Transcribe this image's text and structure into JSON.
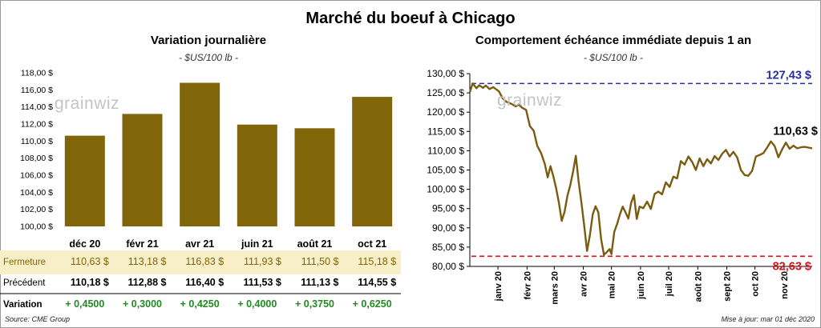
{
  "title": "Marché du boeuf à Chicago",
  "left_title": "Variation journalière",
  "left_unit": "- $US/100 lb -",
  "right_title": "Comportement échéance immédiate depuis 1 an",
  "right_unit": "- $US/100 lb -",
  "watermark": "grainwiz",
  "source": "Source: CME Group",
  "updated": "Mise à jour: mar 01 déc 2020",
  "colors": {
    "bar": "#806608",
    "line": "#7a5c10",
    "high": "#2b2ba0",
    "low": "#d8101a",
    "positive": "#218a21",
    "highlight": "#f8eec8"
  },
  "table": {
    "rows": [
      {
        "label": "Fermeture",
        "values": [
          "110,63 $",
          "113,18 $",
          "116,83 $",
          "111,93 $",
          "111,50 $",
          "115,18 $"
        ]
      },
      {
        "label": "Précédent",
        "values": [
          "110,18 $",
          "112,88 $",
          "116,40 $",
          "111,53 $",
          "111,13 $",
          "114,55 $"
        ]
      },
      {
        "label": "Variation",
        "values": [
          "+ 0,4500",
          "+ 0,3000",
          "+ 0,4250",
          "+ 0,4000",
          "+ 0,3750",
          "+ 0,6250"
        ]
      }
    ]
  },
  "chart_data": [
    {
      "type": "bar",
      "title": "Variation journalière",
      "subtitle": "- $US/100 lb -",
      "categories": [
        "déc 20",
        "févr 21",
        "avr 21",
        "juin 21",
        "août 21",
        "oct 21"
      ],
      "values": [
        110.63,
        113.18,
        116.83,
        111.93,
        111.5,
        115.18
      ],
      "ylim": [
        100,
        118
      ],
      "yticks": [
        100,
        102,
        104,
        106,
        108,
        110,
        112,
        114,
        116,
        118
      ],
      "ytick_labels": [
        "100,00 $",
        "102,00 $",
        "104,00 $",
        "106,00 $",
        "108,00 $",
        "110,00 $",
        "112,00 $",
        "114,00 $",
        "116,00 $",
        "118,00 $"
      ],
      "grid": false
    },
    {
      "type": "line",
      "title": "Comportement échéance immédiate depuis 1 an",
      "subtitle": "- $US/100 lb -",
      "x_type": "date",
      "xtick_labels": [
        "janv 20",
        "févr 20",
        "mars 20",
        "avr 20",
        "mai 20",
        "juin 20",
        "juil 20",
        "août 20",
        "sept 20",
        "oct 20",
        "nov 20"
      ],
      "ylim": [
        80,
        130
      ],
      "yticks": [
        80,
        85,
        90,
        95,
        100,
        105,
        110,
        115,
        120,
        125,
        130
      ],
      "ytick_labels": [
        "80,00 $",
        "85,00 $",
        "90,00 $",
        "95,00 $",
        "100,00 $",
        "105,00 $",
        "110,00 $",
        "115,00 $",
        "120,00 $",
        "125,00 $",
        "130,00 $"
      ],
      "grid": false,
      "series": [
        {
          "x": [
            "2019-12-02",
            "2019-12-05",
            "2019-12-09",
            "2019-12-12",
            "2019-12-16",
            "2019-12-19",
            "2019-12-23",
            "2019-12-27",
            "2020-01-02",
            "2020-01-06",
            "2020-01-10",
            "2020-01-15",
            "2020-01-20",
            "2020-01-23",
            "2020-01-27",
            "2020-01-31",
            "2020-02-04",
            "2020-02-08",
            "2020-02-12",
            "2020-02-16",
            "2020-02-20",
            "2020-02-23",
            "2020-02-26",
            "2020-02-29",
            "2020-03-03",
            "2020-03-06",
            "2020-03-09",
            "2020-03-12",
            "2020-03-15",
            "2020-03-18",
            "2020-03-21",
            "2020-03-24",
            "2020-03-27",
            "2020-03-30",
            "2020-04-02",
            "2020-04-05",
            "2020-04-08",
            "2020-04-11",
            "2020-04-14",
            "2020-04-17",
            "2020-04-20",
            "2020-04-23",
            "2020-04-26",
            "2020-04-29",
            "2020-05-01",
            "2020-05-04",
            "2020-05-07",
            "2020-05-10",
            "2020-05-13",
            "2020-05-16",
            "2020-05-19",
            "2020-05-22",
            "2020-05-25",
            "2020-05-28",
            "2020-05-31",
            "2020-06-04",
            "2020-06-08",
            "2020-06-12",
            "2020-06-16",
            "2020-06-20",
            "2020-06-24",
            "2020-06-28",
            "2020-07-02",
            "2020-07-06",
            "2020-07-10",
            "2020-07-14",
            "2020-07-18",
            "2020-07-22",
            "2020-07-26",
            "2020-07-30",
            "2020-08-03",
            "2020-08-07",
            "2020-08-11",
            "2020-08-15",
            "2020-08-19",
            "2020-08-23",
            "2020-08-27",
            "2020-08-31",
            "2020-09-04",
            "2020-09-08",
            "2020-09-12",
            "2020-09-16",
            "2020-09-20",
            "2020-09-24",
            "2020-09-28",
            "2020-10-02",
            "2020-10-06",
            "2020-10-10",
            "2020-10-14",
            "2020-10-18",
            "2020-10-22",
            "2020-10-26",
            "2020-10-30",
            "2020-11-03",
            "2020-11-07",
            "2020-11-11",
            "2020-11-15",
            "2020-11-19",
            "2020-11-23",
            "2020-11-27",
            "2020-12-01"
          ],
          "y": [
            125.2,
            127.43,
            126.2,
            127.0,
            126.3,
            126.9,
            126.0,
            126.5,
            125.4,
            123.6,
            122.7,
            122.2,
            121.5,
            122.0,
            121.1,
            120.6,
            116.4,
            115.2,
            111.2,
            109.4,
            106.5,
            103.1,
            106.0,
            103.4,
            100.3,
            96.5,
            91.8,
            94.2,
            98.3,
            101.0,
            104.5,
            108.7,
            102.0,
            96.5,
            90.5,
            84.0,
            88.0,
            93.5,
            95.6,
            94.0,
            87.0,
            83.0,
            83.7,
            84.5,
            83.2,
            89.0,
            91.0,
            93.5,
            95.5,
            94.0,
            92.4,
            96.5,
            98.5,
            92.3,
            95.5,
            95.1,
            96.8,
            94.9,
            98.8,
            99.4,
            98.7,
            101.8,
            100.6,
            103.3,
            102.8,
            107.3,
            106.4,
            108.5,
            107.1,
            105.0,
            108.0,
            106.0,
            107.8,
            106.7,
            108.6,
            107.6,
            109.2,
            110.2,
            108.5,
            109.7,
            108.3,
            105.0,
            103.7,
            103.5,
            104.8,
            108.5,
            108.9,
            109.4,
            110.8,
            112.4,
            111.2,
            108.3,
            110.4,
            112.1,
            110.5,
            111.3,
            110.63,
            110.9,
            111.0,
            110.8,
            110.63
          ]
        }
      ],
      "annotations": [
        {
          "label": "127,43 $",
          "y": 127.43,
          "kind": "high"
        },
        {
          "label": "82,63 $",
          "y": 82.63,
          "kind": "low"
        },
        {
          "label": "110,63 $",
          "y": 110.63,
          "kind": "last"
        }
      ]
    }
  ]
}
